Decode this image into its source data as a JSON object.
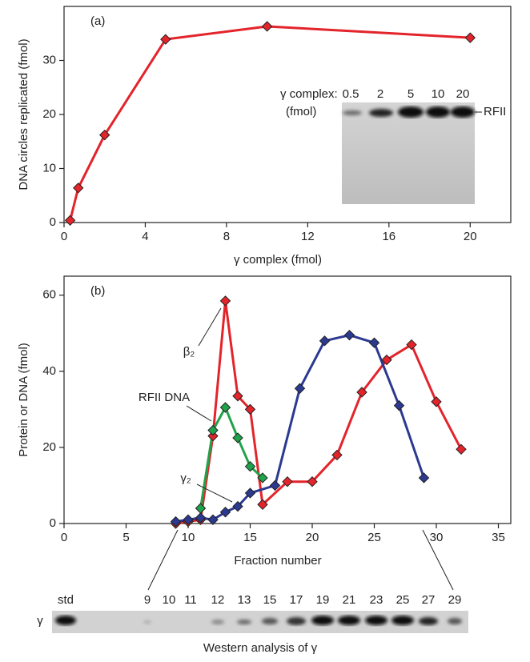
{
  "chart_data": [
    {
      "type": "line",
      "title": "(a)",
      "xlabel": "γ complex (fmol)",
      "ylabel": "DNA circles replicated (fmol)",
      "xlim": [
        0,
        22
      ],
      "xticks": [
        0,
        4,
        8,
        12,
        16,
        20
      ],
      "ylim": [
        0,
        40
      ],
      "yticks": [
        0,
        10,
        20,
        30
      ],
      "series": [
        {
          "color": "#e3242b",
          "x": [
            0.3,
            0.7,
            2,
            5,
            10,
            20
          ],
          "values": [
            0.4,
            6.4,
            16.2,
            33.9,
            36.3,
            34.2
          ]
        }
      ],
      "inset": {
        "label": "γ complex:",
        "unit": "(fmol)",
        "lanes": [
          "0.5",
          "2",
          "5",
          "10",
          "20"
        ],
        "band": "RFII"
      }
    },
    {
      "type": "line",
      "title": "(b)",
      "xlabel": "Fraction number",
      "ylabel": "Protein or DNA (fmol)",
      "xlim": [
        0,
        36
      ],
      "xticks": [
        0,
        5,
        10,
        15,
        20,
        25,
        30,
        35
      ],
      "ylim": [
        0,
        65
      ],
      "yticks": [
        0,
        20,
        40,
        60
      ],
      "series": [
        {
          "name": "β₂",
          "color": "#e3242b",
          "x": [
            9,
            10,
            11,
            12,
            13,
            14,
            15,
            16,
            18,
            20,
            22,
            24,
            26,
            28,
            30,
            32
          ],
          "values": [
            0,
            0.5,
            1,
            23,
            58.5,
            33.5,
            30,
            5,
            11,
            11,
            18,
            34.5,
            43,
            47,
            32,
            19.5
          ]
        },
        {
          "name": "γ₂",
          "color": "#2b3990",
          "x": [
            9,
            10,
            11,
            12,
            13,
            14,
            15,
            17,
            19,
            21,
            23,
            25,
            27,
            29
          ],
          "values": [
            0.5,
            1,
            1.5,
            1,
            3,
            4.5,
            8,
            10,
            35.5,
            48,
            49.5,
            47.5,
            31,
            12
          ]
        },
        {
          "name": "RFII DNA",
          "color": "#1fa34a",
          "x": [
            11,
            12,
            13,
            14,
            15,
            16
          ],
          "values": [
            4,
            24.5,
            30.5,
            22.5,
            15,
            12
          ]
        }
      ],
      "gel": {
        "lanes": [
          "std",
          "9",
          "10",
          "11",
          "12",
          "13",
          "15",
          "17",
          "19",
          "21",
          "23",
          "25",
          "27",
          "29"
        ],
        "row_label": "γ",
        "caption": "Western analysis of γ"
      }
    }
  ]
}
